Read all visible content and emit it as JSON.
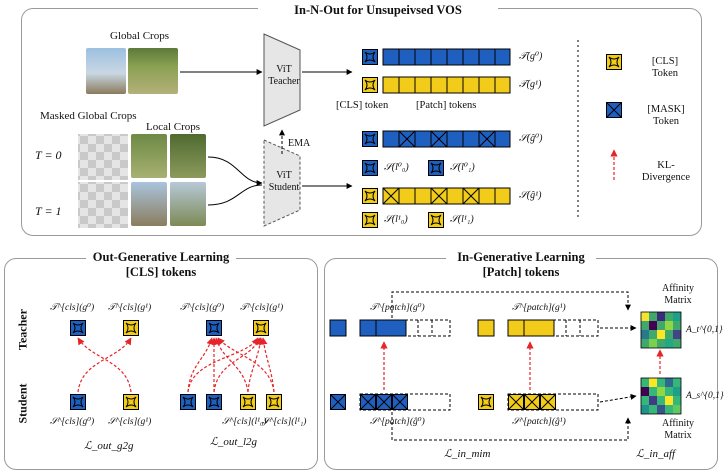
{
  "top": {
    "title": "In-N-Out for Unsupeivsed VOS",
    "global_crops": "Global Crops",
    "masked_global_crops": "Masked Global Crops",
    "local_crops": "Local Crops",
    "t0": "T = 0",
    "t1": "T = 1",
    "teacher": "ViT Teacher",
    "student": "ViT Student",
    "ema": "EMA",
    "cls_token_label": "[CLS] token",
    "patch_tokens_label": "[Patch] tokens",
    "out_teacher_g0": "𝒯(g⁰)",
    "out_teacher_g1": "𝒯(g¹)",
    "out_student_g0": "𝒮(ĝ⁰)",
    "out_student_g1": "𝒮(ĝ¹)",
    "out_student_l00": "𝒮(l⁰₀)",
    "out_student_l01": "𝒮(l⁰₁)",
    "out_student_l10": "𝒮(l¹₀)",
    "out_student_l11": "𝒮(l¹₁)"
  },
  "legend": {
    "cls": "[CLS] Token",
    "mask": "[MASK] Token",
    "kl": "KL-Divergence"
  },
  "left": {
    "title_line1": "Out-Generative Learning",
    "title_line2": "[CLS] tokens",
    "teacher_row": "Teacher",
    "student_row": "Student",
    "t_g0_a": "𝒯^[cls](g⁰)",
    "t_g1_a": "𝒯^[cls](g¹)",
    "t_g0_b": "𝒯^[cls](g⁰)",
    "t_g1_b": "𝒯^[cls](g¹)",
    "s_g0": "𝒮^[cls](g⁰)",
    "s_g1": "𝒮^[cls](g¹)",
    "s_l10": "𝒮^[cls](l¹₀)",
    "s_l11": "𝒮^[cls](l¹₁)",
    "loss_g2g": "ℒ_out_g2g",
    "loss_l2g": "ℒ_out_l2g"
  },
  "right": {
    "title_line1": "In-Generative Learning",
    "title_line2": "[Patch] tokens",
    "t_patch_g0": "𝒯^[patch](g⁰)",
    "t_patch_g1": "𝒯^[patch](g¹)",
    "s_patch_g0": "𝒮^[patch](ĝ⁰)",
    "s_patch_g1": "𝒮^[patch](ĝ¹)",
    "affinity_top": "Affinity Matrix",
    "affinity_bottom": "Affinity Matrix",
    "a_t": "A_t^{0,1}",
    "a_s": "A_s^{0,1}",
    "loss_mim": "ℒ_in_mim",
    "loss_aff": "ℒ_in_aff"
  },
  "colors": {
    "blue": "#1f5fbf",
    "yellow": "#f2cc1a",
    "kl_arrow": "#e5252a",
    "panel_border": "#9a9a9a"
  }
}
